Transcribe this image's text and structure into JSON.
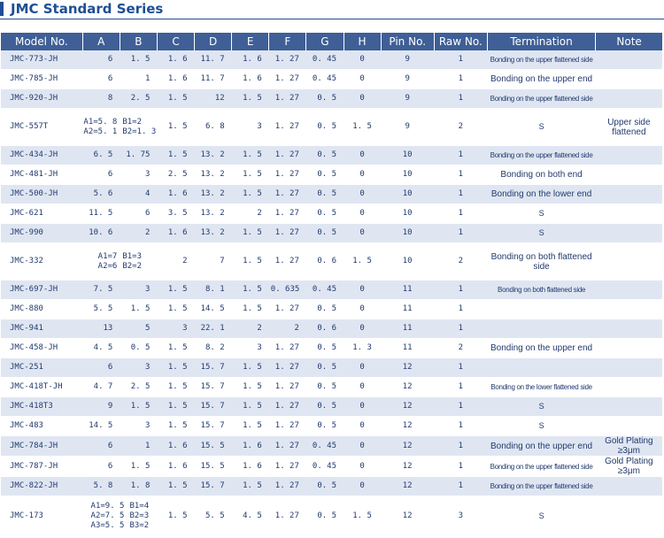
{
  "page": {
    "title": "JMC Standard Series"
  },
  "headers": [
    "Model No.",
    "A",
    "B",
    "C",
    "D",
    "E",
    "F",
    "G",
    "H",
    "Pin No.",
    "Raw No.",
    "Termination",
    "Note"
  ],
  "rows": [
    {
      "model": "JMC-773-JH",
      "A": "6",
      "B": "1. 5",
      "C": "1. 6",
      "D": "11. 7",
      "E": "1. 6",
      "F": "1. 27",
      "G": "0. 45",
      "H": "0",
      "pin": "9",
      "raw": "1",
      "term": "Bonding on the upper flattened side",
      "note": "",
      "shaded": true,
      "tsize": "small"
    },
    {
      "model": "JMC-785-JH",
      "A": "6",
      "B": "1",
      "C": "1. 6",
      "D": "11. 7",
      "E": "1. 6",
      "F": "1. 27",
      "G": "0. 45",
      "H": "0",
      "pin": "9",
      "raw": "1",
      "term": "Bonding on the upper end",
      "note": "",
      "shaded": false,
      "tsize": "big"
    },
    {
      "model": "JMC-920-JH",
      "A": "8",
      "B": "2. 5",
      "C": "1. 5",
      "D": "12",
      "E": "1. 5",
      "F": "1. 27",
      "G": "0. 5",
      "H": "0",
      "pin": "9",
      "raw": "1",
      "term": "Bonding on the upper flattened side",
      "note": "",
      "shaded": true,
      "tsize": "small"
    },
    {
      "model": "JMC-557T",
      "A1": "A1=5. 8",
      "A2": "A2=5. 1",
      "B1": "B1=2",
      "B2": "B2=1. 3",
      "C": "1. 5",
      "D": "6. 8",
      "E": "3",
      "F": "1. 27",
      "G": "0. 5",
      "H": "1. 5",
      "pin": "9",
      "raw": "2",
      "term": "S",
      "note": "Upper side flattened",
      "shaded": false,
      "tall": true
    },
    {
      "model": "JMC-434-JH",
      "A": "6. 5",
      "B": "1. 75",
      "C": "1. 5",
      "D": "13. 2",
      "E": "1. 5",
      "F": "1. 27",
      "G": "0. 5",
      "H": "0",
      "pin": "10",
      "raw": "1",
      "term": "Bonding on the upper flattened side",
      "note": "",
      "shaded": true,
      "tsize": "small"
    },
    {
      "model": "JMC-481-JH",
      "A": "6",
      "B": "3",
      "C": "2. 5",
      "D": "13. 2",
      "E": "1. 5",
      "F": "1. 27",
      "G": "0. 5",
      "H": "0",
      "pin": "10",
      "raw": "1",
      "term": "Bonding on both end",
      "note": "",
      "shaded": false,
      "tsize": "big"
    },
    {
      "model": "JMC-500-JH",
      "A": "5. 6",
      "B": "4",
      "C": "1. 6",
      "D": "13. 2",
      "E": "1. 5",
      "F": "1. 27",
      "G": "0. 5",
      "H": "0",
      "pin": "10",
      "raw": "1",
      "term": "Bonding on the lower end",
      "note": "",
      "shaded": true,
      "tsize": "big"
    },
    {
      "model": "JMC-621",
      "A": "11. 5",
      "B": "6",
      "C": "3. 5",
      "D": "13. 2",
      "E": "2",
      "F": "1. 27",
      "G": "0. 5",
      "H": "0",
      "pin": "10",
      "raw": "1",
      "term": "S",
      "note": "",
      "shaded": false
    },
    {
      "model": "JMC-990",
      "A": "10. 6",
      "B": "2",
      "C": "1. 6",
      "D": "13. 2",
      "E": "1. 5",
      "F": "1. 27",
      "G": "0. 5",
      "H": "0",
      "pin": "10",
      "raw": "1",
      "term": "S",
      "note": "",
      "shaded": true
    },
    {
      "model": "JMC-332",
      "A1": "A1=7",
      "A2": "A2=6",
      "B1": "B1=3",
      "B2": "B2=2",
      "C": "2",
      "D": "7",
      "E": "1. 5",
      "F": "1. 27",
      "G": "0. 6",
      "H": "1. 5",
      "pin": "10",
      "raw": "2",
      "term": "Bonding on both flattened side",
      "note": "",
      "shaded": false,
      "tall": true,
      "tsize": "big"
    },
    {
      "model": "JMC-697-JH",
      "A": "7. 5",
      "B": "3",
      "C": "1. 5",
      "D": "8. 1",
      "E": "1. 5",
      "F": "0. 635",
      "G": "0. 45",
      "H": "0",
      "pin": "11",
      "raw": "1",
      "term": "Bonding on both flattened side",
      "note": "",
      "shaded": true,
      "tsize": "small"
    },
    {
      "model": "JMC-880",
      "A": "5. 5",
      "B": "1. 5",
      "C": "1. 5",
      "D": "14. 5",
      "E": "1. 5",
      "F": "1. 27",
      "G": "0. 5",
      "H": "0",
      "pin": "11",
      "raw": "1",
      "term": "",
      "note": "",
      "shaded": false
    },
    {
      "model": "JMC-941",
      "A": "13",
      "B": "5",
      "C": "3",
      "D": "22. 1",
      "E": "2",
      "F": "2",
      "G": "0. 6",
      "H": "0",
      "pin": "11",
      "raw": "1",
      "term": "",
      "note": "",
      "shaded": true
    },
    {
      "model": "JMC-458-JH",
      "A": "4. 5",
      "B": "0. 5",
      "C": "1. 5",
      "D": "8. 2",
      "E": "3",
      "F": "1. 27",
      "G": "0. 5",
      "H": "1. 3",
      "pin": "11",
      "raw": "2",
      "term": "Bonding on the upper end",
      "note": "",
      "shaded": false,
      "tsize": "big"
    },
    {
      "model": "JMC-251",
      "A": "6",
      "B": "3",
      "C": "1. 5",
      "D": "15. 7",
      "E": "1. 5",
      "F": "1. 27",
      "G": "0. 5",
      "H": "0",
      "pin": "12",
      "raw": "1",
      "term": "",
      "note": "",
      "shaded": true
    },
    {
      "model": "JMC-418T-JH",
      "A": "4. 7",
      "B": "2. 5",
      "C": "1. 5",
      "D": "15. 7",
      "E": "1. 5",
      "F": "1. 27",
      "G": "0. 5",
      "H": "0",
      "pin": "12",
      "raw": "1",
      "term": "Bonding on the lower flattened side",
      "note": "",
      "shaded": false,
      "tsize": "small"
    },
    {
      "model": "JMC-418T3",
      "A": "9",
      "B": "1. 5",
      "C": "1. 5",
      "D": "15. 7",
      "E": "1. 5",
      "F": "1. 27",
      "G": "0. 5",
      "H": "0",
      "pin": "12",
      "raw": "1",
      "term": "S",
      "note": "",
      "shaded": true
    },
    {
      "model": "JMC-483",
      "A": "14. 5",
      "B": "3",
      "C": "1. 5",
      "D": "15. 7",
      "E": "1. 5",
      "F": "1. 27",
      "G": "0. 5",
      "H": "0",
      "pin": "12",
      "raw": "1",
      "term": "S",
      "note": "",
      "shaded": false
    },
    {
      "model": "JMC-784-JH",
      "A": "6",
      "B": "1",
      "C": "1. 6",
      "D": "15. 5",
      "E": "1. 6",
      "F": "1. 27",
      "G": "0. 45",
      "H": "0",
      "pin": "12",
      "raw": "1",
      "term": "Bonding on the upper end",
      "note": "Gold Plating ≥3μm",
      "shaded": true,
      "tsize": "big"
    },
    {
      "model": "JMC-787-JH",
      "A": "6",
      "B": "1. 5",
      "C": "1. 6",
      "D": "15. 5",
      "E": "1. 6",
      "F": "1. 27",
      "G": "0. 45",
      "H": "0",
      "pin": "12",
      "raw": "1",
      "term": "Bonding on the upper flattened side",
      "note": "Gold Plating ≥3μm",
      "shaded": false,
      "tsize": "small"
    },
    {
      "model": "JMC-822-JH",
      "A": "5. 8",
      "B": "1. 8",
      "C": "1. 5",
      "D": "15. 7",
      "E": "1. 5",
      "F": "1. 27",
      "G": "0. 5",
      "H": "0",
      "pin": "12",
      "raw": "1",
      "term": "Bonding on the upper flattened side",
      "note": "",
      "shaded": true,
      "tsize": "small"
    },
    {
      "model": "JMC-173",
      "A1": "A1=9. 5",
      "A2": "A2=7. 5",
      "A3": "A3=5. 5",
      "B1": "B1=4",
      "B2": "B2=3",
      "B3": "B3=2",
      "C": "1. 5",
      "D": "5. 5",
      "E": "4. 5",
      "F": "1. 27",
      "G": "0. 5",
      "H": "1. 5",
      "pin": "12",
      "raw": "3",
      "term": "S",
      "note": "",
      "shaded": false,
      "xtall": true
    }
  ]
}
